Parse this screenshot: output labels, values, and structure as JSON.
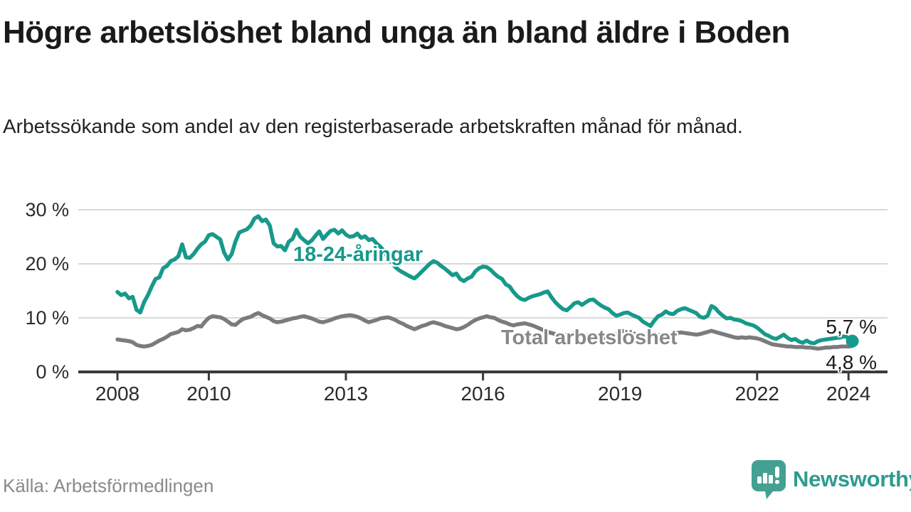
{
  "title": "Högre arbetslöshet bland unga än bland äldre i Boden",
  "subtitle": "Arbetssökande som andel av den registerbaserade arbetskraften månad för månad.",
  "source": "Källa: Arbetsförmedlingen",
  "logo": {
    "text": "Newsworthy",
    "icon": "bar-chart-speech-bubble-icon"
  },
  "end_labels": {
    "youth": "5,7 %",
    "total": "4,8 %"
  },
  "colors": {
    "youth_line": "#17998b",
    "total_line": "#7b7a7e",
    "total_label": "#88878c",
    "youth_label": "#17998b",
    "grid": "#d9d9d9",
    "axis": "#3a3a3a",
    "tick_text": "#2b2b2b",
    "title_text": "#1a1a1a",
    "logo_teal": "#44a192"
  },
  "chart_data": {
    "type": "line",
    "title": "Högre arbetslöshet bland unga än bland äldre i Boden",
    "xlabel": "",
    "ylabel": "Arbetssökande som andel av den registerbaserade arbetskraften",
    "x_start_year": 2008,
    "x_step_months": 1,
    "x_end": "2024-02",
    "x_ticks": [
      2008,
      2010,
      2013,
      2016,
      2019,
      2022,
      2024
    ],
    "y_ticks": [
      0,
      10,
      20,
      30
    ],
    "y_tick_labels": [
      "0 %",
      "10 %",
      "20 %",
      "30 %"
    ],
    "ylim": [
      0,
      32
    ],
    "grid": "horizontal",
    "legend_position": "inline-labels",
    "series": [
      {
        "name": "18-24-åringar",
        "color": "#17998b",
        "last_value_label": "5,7 %",
        "values": [
          14.8,
          14.2,
          14.5,
          13.6,
          13.9,
          11.5,
          11.0,
          12.9,
          14.2,
          15.8,
          17.2,
          17.5,
          19.2,
          19.6,
          20.5,
          20.8,
          21.4,
          23.6,
          21.2,
          21.1,
          21.8,
          22.8,
          23.6,
          24.1,
          25.3,
          25.5,
          25.0,
          24.5,
          22.1,
          20.8,
          21.8,
          24.1,
          25.8,
          26.1,
          26.4,
          27.1,
          28.4,
          28.8,
          27.9,
          28.2,
          27.1,
          23.8,
          23.2,
          23.3,
          22.5,
          24.1,
          24.6,
          26.3,
          25.0,
          24.4,
          23.8,
          24.3,
          25.2,
          26.0,
          24.6,
          25.4,
          26.1,
          26.3,
          25.6,
          26.2,
          25.4,
          25.0,
          25.1,
          25.6,
          24.8,
          25.1,
          24.4,
          24.6,
          23.8,
          23.2,
          22.4,
          21.2,
          20.3,
          19.4,
          18.8,
          18.4,
          18.0,
          17.6,
          17.3,
          17.9,
          18.6,
          19.3,
          20.0,
          20.5,
          20.2,
          19.6,
          19.1,
          18.5,
          17.9,
          18.2,
          17.2,
          16.8,
          17.3,
          17.6,
          18.6,
          19.2,
          19.5,
          19.4,
          18.9,
          18.2,
          17.6,
          17.2,
          16.2,
          15.8,
          14.8,
          14.0,
          13.5,
          13.3,
          13.7,
          14.0,
          14.2,
          14.4,
          14.7,
          14.9,
          13.8,
          12.9,
          12.2,
          11.6,
          11.4,
          12.0,
          12.7,
          12.9,
          12.4,
          12.9,
          13.3,
          13.4,
          12.8,
          12.3,
          11.9,
          11.6,
          10.9,
          10.4,
          10.6,
          10.9,
          11.0,
          10.6,
          10.3,
          10.0,
          9.3,
          8.9,
          8.5,
          9.5,
          10.3,
          10.6,
          11.2,
          10.8,
          10.7,
          11.3,
          11.6,
          11.8,
          11.5,
          11.2,
          10.9,
          10.2,
          10.0,
          10.4,
          12.2,
          11.8,
          11.0,
          10.4,
          9.9,
          10.0,
          9.7,
          9.6,
          9.4,
          9.0,
          8.8,
          8.6,
          8.2,
          7.6,
          7.0,
          6.7,
          6.3,
          6.1,
          6.5,
          6.9,
          6.3,
          5.9,
          6.1,
          5.6,
          5.4,
          5.8,
          5.4,
          5.3,
          5.7,
          5.9,
          6.0,
          6.1,
          6.2,
          6.3,
          6.4,
          6.6,
          6.3,
          5.7
        ]
      },
      {
        "name": "Total arbetslöshet",
        "color": "#7b7a7e",
        "last_value_label": "4,8 %",
        "values": [
          6.0,
          5.9,
          5.8,
          5.7,
          5.5,
          5.0,
          4.8,
          4.7,
          4.8,
          5.0,
          5.4,
          5.8,
          6.1,
          6.5,
          7.0,
          7.2,
          7.4,
          7.9,
          7.7,
          7.8,
          8.1,
          8.5,
          8.4,
          9.3,
          10.0,
          10.3,
          10.2,
          10.1,
          9.8,
          9.3,
          8.8,
          8.7,
          9.3,
          9.8,
          10.0,
          10.2,
          10.6,
          10.9,
          10.5,
          10.2,
          9.9,
          9.4,
          9.2,
          9.3,
          9.5,
          9.7,
          9.9,
          10.0,
          10.2,
          10.3,
          10.1,
          9.9,
          9.6,
          9.3,
          9.2,
          9.4,
          9.6,
          9.9,
          10.1,
          10.3,
          10.4,
          10.5,
          10.4,
          10.2,
          9.9,
          9.5,
          9.2,
          9.4,
          9.6,
          9.9,
          10.0,
          10.1,
          9.9,
          9.6,
          9.2,
          8.9,
          8.5,
          8.2,
          7.9,
          8.2,
          8.5,
          8.7,
          9.0,
          9.2,
          9.0,
          8.8,
          8.5,
          8.3,
          8.1,
          7.9,
          8.0,
          8.3,
          8.7,
          9.2,
          9.6,
          9.9,
          10.1,
          10.3,
          10.1,
          10.0,
          9.6,
          9.3,
          9.1,
          8.8,
          8.6,
          8.8,
          8.9,
          9.0,
          8.8,
          8.6,
          8.3,
          8.0,
          7.7,
          7.4,
          7.2,
          7.0,
          6.9,
          6.8,
          6.9,
          7.0,
          7.1,
          7.0,
          6.9,
          6.8,
          6.6,
          6.4,
          6.3,
          6.2,
          6.3,
          6.4,
          6.6,
          6.9,
          7.4,
          7.6,
          7.4,
          7.2,
          7.0,
          6.8,
          6.6,
          6.5,
          6.6,
          6.7,
          6.8,
          6.9,
          6.8,
          6.7,
          7.0,
          7.2,
          7.3,
          7.2,
          7.1,
          7.0,
          6.9,
          7.0,
          7.2,
          7.4,
          7.6,
          7.4,
          7.2,
          7.0,
          6.8,
          6.6,
          6.4,
          6.3,
          6.4,
          6.3,
          6.4,
          6.3,
          6.2,
          6.0,
          5.7,
          5.4,
          5.1,
          5.0,
          4.9,
          4.8,
          4.7,
          4.7,
          4.6,
          4.6,
          4.6,
          4.5,
          4.5,
          4.4,
          4.3,
          4.4,
          4.5,
          4.5,
          4.6,
          4.6,
          4.7,
          4.7,
          4.7,
          4.8
        ]
      }
    ]
  }
}
